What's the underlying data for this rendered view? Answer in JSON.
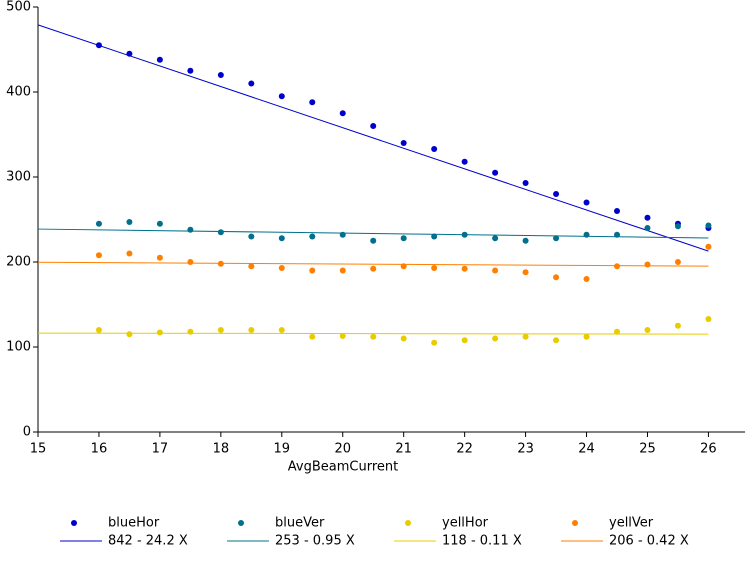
{
  "chart_data": {
    "type": "scatter",
    "x_label": "AvgBeamCurrent",
    "xlim": [
      15,
      26.6
    ],
    "xticks": [
      15,
      16,
      17,
      18,
      19,
      20,
      21,
      22,
      23,
      24,
      25,
      26
    ],
    "ylim": [
      0,
      500
    ],
    "yticks": [
      0,
      100,
      200,
      300,
      400,
      500
    ],
    "x": [
      16,
      16.5,
      17,
      17.5,
      18,
      18.5,
      19,
      19.5,
      20,
      20.5,
      21,
      21.5,
      22,
      22.5,
      23,
      23.5,
      24,
      24.5,
      25,
      25.5,
      26
    ],
    "series": [
      {
        "name": "blueHor",
        "color": "#0000cc",
        "values": [
          455,
          445,
          438,
          425,
          420,
          410,
          395,
          388,
          375,
          360,
          340,
          333,
          318,
          305,
          293,
          280,
          270,
          260,
          252,
          245,
          240
        ],
        "fit": {
          "label": "842 - 24.2 X",
          "intercept": 842,
          "slope": -24.2
        }
      },
      {
        "name": "blueVer",
        "color": "#00708c",
        "values": [
          245,
          247,
          245,
          238,
          235,
          230,
          228,
          230,
          232,
          225,
          228,
          230,
          232,
          228,
          225,
          228,
          232,
          232,
          240,
          242,
          243
        ],
        "fit": {
          "label": "253 - 0.95 X",
          "intercept": 253,
          "slope": -0.95
        }
      },
      {
        "name": "yellHor",
        "color": "#e8cc00",
        "values": [
          120,
          115,
          117,
          118,
          120,
          120,
          120,
          112,
          113,
          112,
          110,
          105,
          108,
          110,
          112,
          108,
          112,
          118,
          120,
          125,
          133
        ],
        "fit": {
          "label": "118 - 0.11 X",
          "intercept": 118,
          "slope": -0.11
        }
      },
      {
        "name": "yellVer",
        "color": "#ff7f00",
        "values": [
          208,
          210,
          205,
          200,
          198,
          195,
          193,
          190,
          190,
          192,
          195,
          193,
          192,
          190,
          188,
          182,
          180,
          195,
          197,
          200,
          218
        ],
        "fit": {
          "label": "206 - 0.42 X",
          "intercept": 206,
          "slope": -0.42
        }
      }
    ]
  }
}
